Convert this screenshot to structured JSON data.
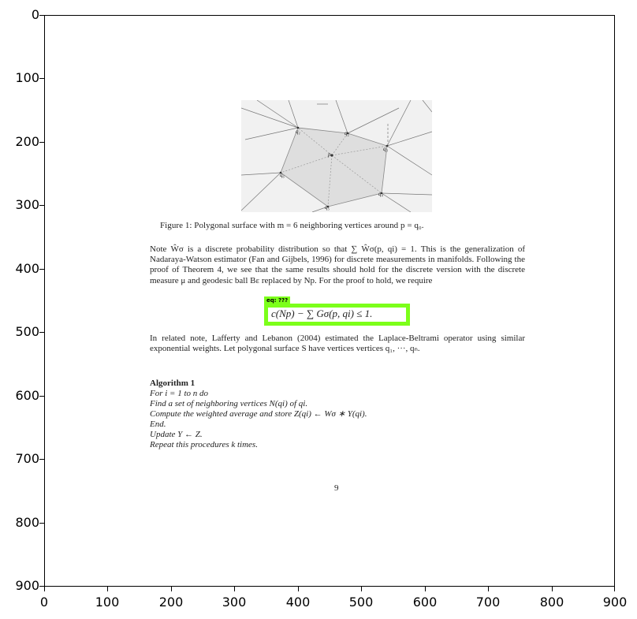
{
  "axes": {
    "y_ticks": [
      "0",
      "100",
      "200",
      "300",
      "400",
      "500",
      "600",
      "700",
      "800",
      "900"
    ],
    "x_ticks": [
      "0",
      "100",
      "200",
      "300",
      "400",
      "500",
      "600",
      "700",
      "800",
      "900"
    ]
  },
  "figure": {
    "vertex_labels": [
      "q₁",
      "q₂",
      "q₃",
      "q₄",
      "q₅",
      "q₆",
      "p"
    ]
  },
  "document": {
    "caption": "Figure 1: Polygonal surface with m = 6 neighboring vertices around p = q₀.",
    "para1": "Note Ŵσ is a discrete probability distribution so that ∑ Ŵσ(p, qi) = 1. This is the generalization of Nadaraya-Watson estimator (Fan and Gijbels, 1996) for discrete measurements in manifolds. Following the proof of Theorem 4, we see that the same results should hold for the discrete version with the discrete measure μ and geodesic ball Bε replaced by Np. For the proof to hold, we require",
    "eq_tag": "eq: ???",
    "equation": "c(Np) − ∑ Gσ(p, qi) ≤ 1.",
    "para2": "In related note, Lafferty and Lebanon (2004) estimated the Laplace-Beltrami operator using similar exponential weights. Let polygonal surface S have vertices vertices q₁, ···, qₙ.",
    "algo_title": "Algorithm 1",
    "algo_lines": [
      "For i = 1 to n do",
      "Find a set of neighboring vertices N(qi) of qi.",
      "Compute the weighted average and store Z(qi) ← Wσ ∗ Y(qi).",
      "End.",
      "Update Y ← Z.",
      "Repeat this procedures k times."
    ],
    "page_number": "9"
  }
}
